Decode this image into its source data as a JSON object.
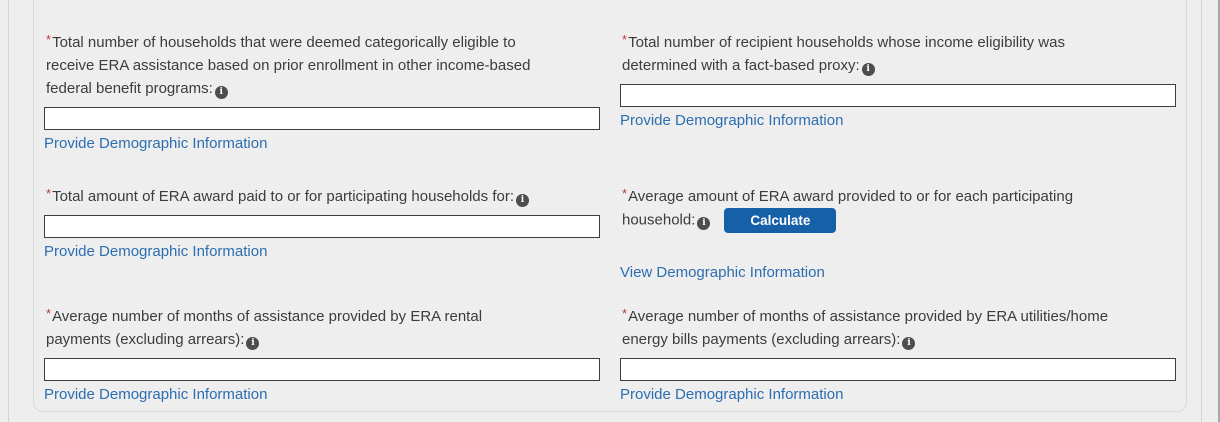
{
  "colors": {
    "page_background": "#eeeeee",
    "link_blue": "#2d6eaf",
    "button_blue": "#1660a8",
    "required_red": "#c23934",
    "input_border": "#3e3e3e",
    "panel_border": "#d9d9d9"
  },
  "required_marker": "*",
  "icons": {
    "info_glyph": "i"
  },
  "links": {
    "provide": "Provide Demographic Information",
    "view": "View Demographic Information"
  },
  "fields": [
    {
      "name": "households-categorically-eligible",
      "label_lines": [
        "Total number of households that were deemed categorically eligible to",
        "receive ERA assistance based on prior enrollment in other income-based",
        "federal benefit programs:"
      ],
      "value": "",
      "link": "Provide Demographic Information"
    },
    {
      "name": "households-fact-based-proxy",
      "label_lines": [
        "Total number of recipient households whose income eligibility was",
        "determined with a fact-based proxy:"
      ],
      "value": "",
      "link": "Provide Demographic Information"
    },
    {
      "name": "total-era-award-paid",
      "label_lines": [
        "Total amount of ERA award paid to or for participating households for:"
      ],
      "value": "",
      "link": "Provide Demographic Information"
    },
    {
      "name": "average-era-award",
      "label_lines": [
        "Average amount of ERA award provided to or for each participating",
        "household:"
      ],
      "button_label": "Calculate",
      "link": "View Demographic Information"
    },
    {
      "name": "avg-months-rental-payments",
      "label_lines": [
        "Average number of months of assistance provided by ERA rental",
        "payments (excluding arrears):"
      ],
      "value": "",
      "link": "Provide Demographic Information"
    },
    {
      "name": "avg-months-utilities-payments",
      "label_lines": [
        "Average number of months of assistance provided by ERA utilities/home",
        "energy bills payments (excluding arrears):"
      ],
      "value": "",
      "link": "Provide Demographic Information"
    }
  ]
}
